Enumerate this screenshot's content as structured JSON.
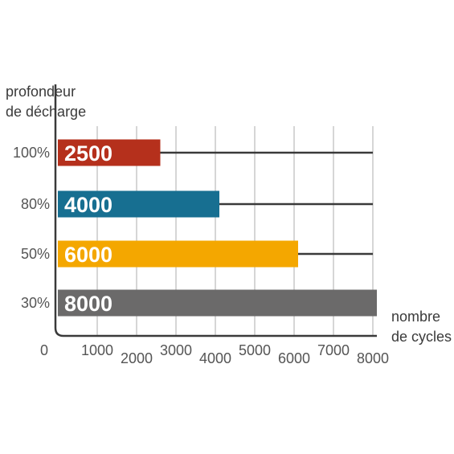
{
  "chart_data": {
    "type": "bar",
    "orientation": "horizontal",
    "ylabel_lines": [
      "profondeur",
      "de décharge"
    ],
    "xlabel_lines": [
      "nombre",
      "de cycles"
    ],
    "categories": [
      "100%",
      "80%",
      "50%",
      "30%"
    ],
    "values": [
      2500,
      4000,
      6000,
      8000
    ],
    "value_labels": [
      "2500",
      "4000",
      "6000",
      "8000"
    ],
    "colors": [
      "#b5301c",
      "#176f91",
      "#f4a700",
      "#6b6a6a"
    ],
    "xlim": [
      0,
      8000
    ],
    "xticks": [
      0,
      1000,
      2000,
      3000,
      4000,
      5000,
      6000,
      7000,
      8000
    ],
    "xtick_labels": [
      "0",
      "1000",
      "2000",
      "3000",
      "4000",
      "5000",
      "6000",
      "7000",
      "8000"
    ],
    "grid": "vertical lines and horizontal guide lines behind bars",
    "legend": "none"
  }
}
